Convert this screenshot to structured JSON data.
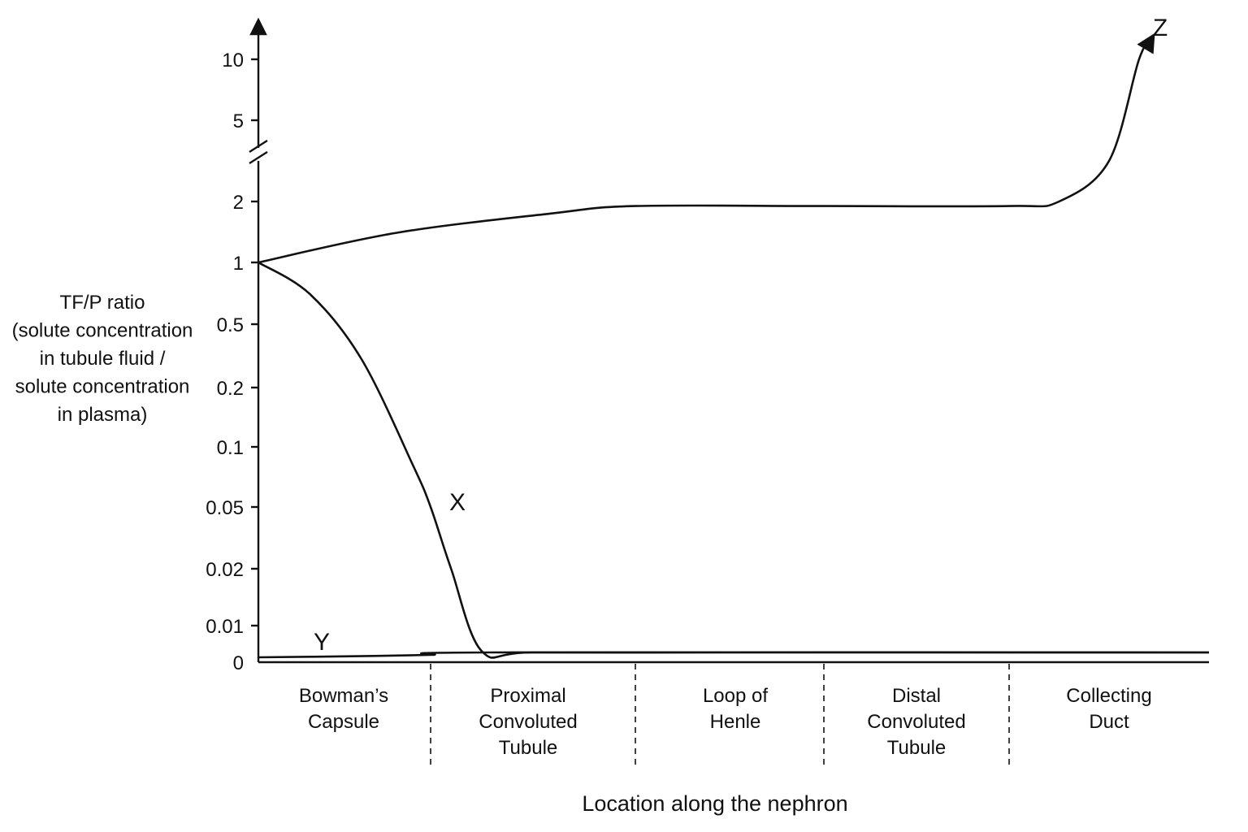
{
  "chart_data": {
    "type": "line",
    "ylabel_lines": [
      "TF/P ratio",
      "(solute concentration",
      "in tubule fluid /",
      "solute concentration",
      "in plasma)"
    ],
    "xlabel": "Location along the nephron",
    "y_ticks": [
      "0",
      "0.01",
      "0.02",
      "0.05",
      "0.1",
      "0.2",
      "0.5",
      "1",
      "2",
      "5",
      "10"
    ],
    "y_axis_break": "between 2 and 5",
    "categories": [
      [
        "Bowman’s",
        "Capsule"
      ],
      [
        "Proximal",
        "Convoluted",
        "Tubule"
      ],
      [
        "Loop of",
        "Henle"
      ],
      [
        "Distal",
        "Convoluted",
        "Tubule"
      ],
      [
        "Collecting",
        "Duct"
      ]
    ],
    "grid": false,
    "legend": "none",
    "x_domain": [
      0,
      5
    ],
    "series": [
      {
        "name": "Z",
        "values": [
          [
            0,
            1
          ],
          [
            0.8,
            1.4
          ],
          [
            1.6,
            1.75
          ],
          [
            2,
            1.9
          ],
          [
            3,
            1.9
          ],
          [
            4,
            1.9
          ],
          [
            4.25,
            2
          ],
          [
            4.5,
            3.5
          ],
          [
            4.65,
            10
          ],
          [
            4.72,
            13
          ]
        ],
        "end_arrow": true
      },
      {
        "name": "X",
        "values": [
          [
            0,
            1
          ],
          [
            0.3,
            0.7
          ],
          [
            0.6,
            0.3
          ],
          [
            0.9,
            0.08
          ],
          [
            1,
            0.05
          ],
          [
            1.1,
            0.02
          ],
          [
            1.25,
            0.003
          ],
          [
            1.5,
            0.002
          ],
          [
            2.5,
            0.002
          ],
          [
            3.5,
            0.002
          ],
          [
            4.5,
            0.002
          ],
          [
            5,
            0.002
          ]
        ]
      },
      {
        "name": "Y",
        "values": [
          [
            0,
            0.001
          ],
          [
            0.5,
            0.0012
          ],
          [
            1,
            0.0015
          ],
          [
            1.3,
            0.002
          ],
          [
            5,
            0.002
          ]
        ]
      }
    ]
  }
}
